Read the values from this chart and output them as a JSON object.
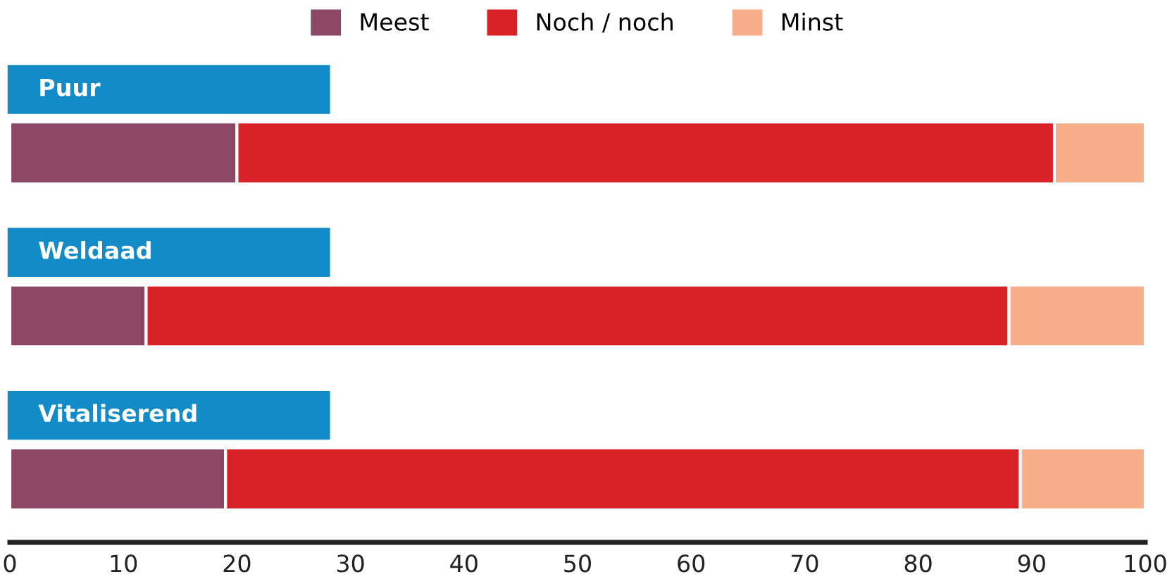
{
  "chart_data": {
    "type": "bar",
    "orientation": "horizontal",
    "stacked": true,
    "categories": [
      "Puur",
      "Weldaad",
      "Vitaliserend"
    ],
    "series": [
      {
        "name": "Meest",
        "color": "#8b4766",
        "values": [
          20,
          12,
          19
        ]
      },
      {
        "name": "Noch / noch",
        "color": "#d92128",
        "values": [
          72,
          76,
          70
        ]
      },
      {
        "name": "Minst",
        "color": "#f8ae8b",
        "values": [
          8,
          12,
          11
        ]
      }
    ],
    "xlim": [
      0,
      100
    ],
    "xticks": [
      0,
      10,
      20,
      30,
      40,
      50,
      60,
      70,
      80,
      90,
      100
    ],
    "grid": false,
    "legend": "top"
  }
}
